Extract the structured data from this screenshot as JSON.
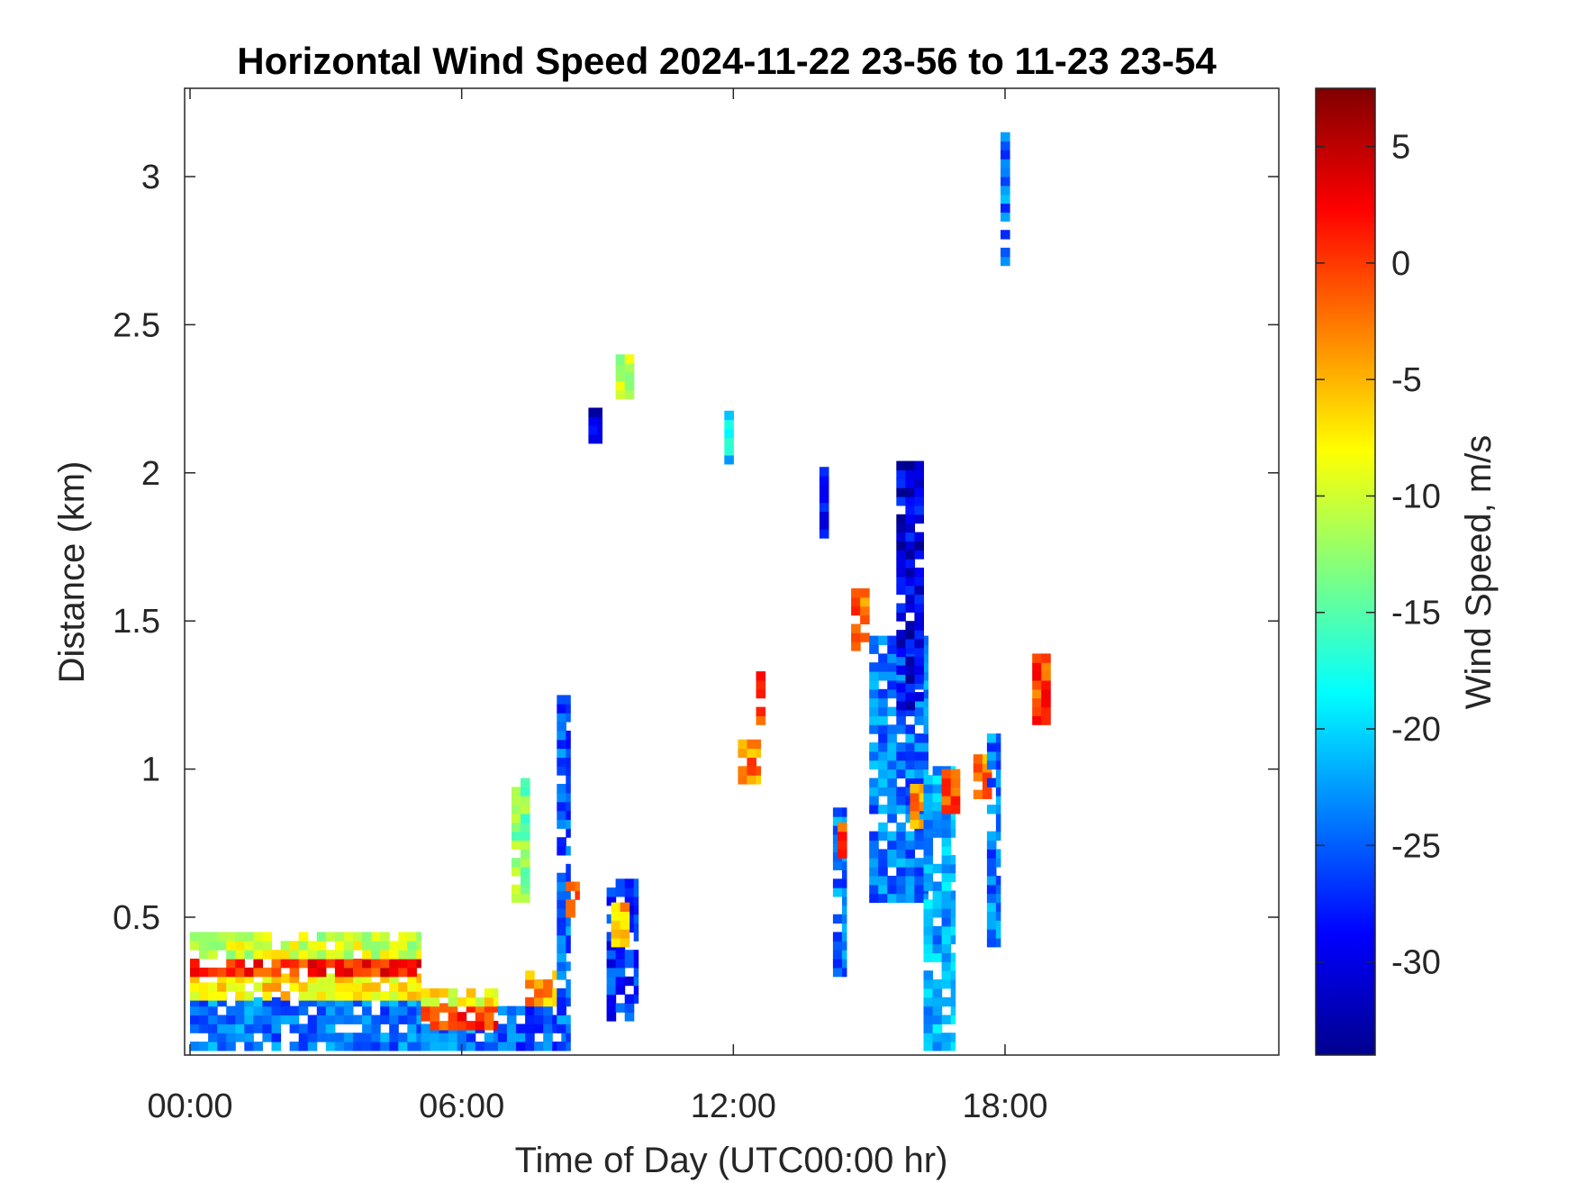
{
  "chart_data": {
    "type": "heatmap",
    "title": "Horizontal Wind Speed 2024-11-22 23-56 to 11-23 23-54",
    "xlabel": "Time of Day (UTC00:00 hr)",
    "ylabel": "Distance (km)",
    "colorbar_label": "Wind Speed, m/s",
    "colormap": "jet",
    "xlim": [
      0,
      24
    ],
    "ylim": [
      0.05,
      3.3
    ],
    "clim": [
      -34,
      7.5
    ],
    "x_ticks": [
      0,
      6,
      12,
      18
    ],
    "x_tick_labels": [
      "00:00",
      "06:00",
      "12:00",
      "18:00"
    ],
    "y_ticks": [
      0.5,
      1,
      1.5,
      2,
      2.5,
      3
    ],
    "y_tick_labels": [
      "0.5",
      "1",
      "1.5",
      "2",
      "2.5",
      "3"
    ],
    "colorbar_ticks": [
      5,
      0,
      -5,
      -10,
      -15,
      -20,
      -25,
      -30
    ],
    "colorbar_tick_labels": [
      "5",
      "0",
      "-5",
      "-10",
      "-15",
      "-20",
      "-25",
      "-30"
    ],
    "grid": false,
    "cell_size": {
      "hours": 0.2,
      "km": 0.03
    },
    "note_regions": "regions approximate the visible wind-speed patches: [x0_hr, x1_hr, y0_km, y1_km, value_m_s]",
    "regions": [
      [
        0.0,
        5.1,
        0.05,
        0.22,
        -24
      ],
      [
        0.0,
        5.1,
        0.22,
        0.3,
        -7
      ],
      [
        0.0,
        5.1,
        0.3,
        0.36,
        1
      ],
      [
        0.0,
        5.1,
        0.36,
        0.43,
        -10
      ],
      [
        5.1,
        6.8,
        0.05,
        0.12,
        -24
      ],
      [
        5.1,
        6.8,
        0.12,
        0.2,
        0
      ],
      [
        5.1,
        6.8,
        0.2,
        0.26,
        -8
      ],
      [
        6.8,
        8.3,
        0.05,
        0.2,
        -25
      ],
      [
        7.4,
        8.3,
        0.2,
        0.3,
        -4
      ],
      [
        7.1,
        7.5,
        0.55,
        0.95,
        -13
      ],
      [
        8.1,
        8.4,
        0.05,
        1.25,
        -25
      ],
      [
        8.3,
        8.6,
        0.5,
        0.62,
        -3
      ],
      [
        9.2,
        9.9,
        0.15,
        0.62,
        -27
      ],
      [
        9.3,
        9.7,
        0.4,
        0.55,
        -5
      ],
      [
        9.4,
        9.8,
        2.25,
        2.4,
        -12
      ],
      [
        8.8,
        9.1,
        2.1,
        2.22,
        -30
      ],
      [
        11.8,
        12.0,
        2.03,
        2.2,
        -20
      ],
      [
        12.1,
        12.6,
        0.95,
        1.1,
        -3
      ],
      [
        12.5,
        12.7,
        1.15,
        1.33,
        0
      ],
      [
        13.9,
        14.1,
        1.78,
        2.0,
        -27
      ],
      [
        14.2,
        14.5,
        0.3,
        0.85,
        -24
      ],
      [
        14.3,
        14.5,
        0.7,
        0.82,
        0
      ],
      [
        14.6,
        15.0,
        1.4,
        1.6,
        -2
      ],
      [
        15.0,
        16.3,
        0.55,
        1.45,
        -24
      ],
      [
        15.6,
        16.2,
        1.2,
        2.02,
        -30
      ],
      [
        15.9,
        16.4,
        0.8,
        0.95,
        -4
      ],
      [
        16.2,
        16.9,
        0.05,
        1.0,
        -22
      ],
      [
        16.6,
        17.0,
        0.85,
        0.98,
        0
      ],
      [
        17.3,
        17.7,
        0.9,
        1.05,
        -3
      ],
      [
        17.6,
        17.9,
        0.4,
        1.12,
        -24
      ],
      [
        17.9,
        18.1,
        2.7,
        3.15,
        -24
      ],
      [
        18.6,
        19.0,
        1.15,
        1.38,
        0
      ]
    ]
  }
}
